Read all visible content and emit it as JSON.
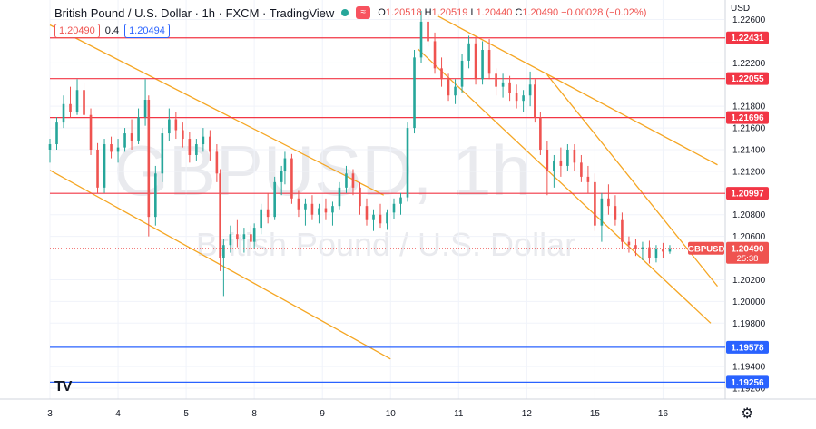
{
  "header": {
    "title": "British Pound / U.S. Dollar · 1h · FXCM · TradingView",
    "ohlc": {
      "o_label": "O",
      "o": "1.20518",
      "h_label": "H",
      "h": "1.20519",
      "l_label": "L",
      "l": "1.20440",
      "c_label": "C",
      "c": "1.20490",
      "change": "−0.00028 (−0.02%)"
    },
    "bid": "1.20490",
    "spread": "0.4",
    "ask": "1.20494",
    "wave_icon": "≈"
  },
  "axis": {
    "currency": "USD",
    "current_tag": "GBPUSD",
    "current_price": "1.20490",
    "countdown": "25:38"
  },
  "watermark": {
    "symbol": "GBPUSD, 1h",
    "name": "British Pound / U.S. Dollar"
  },
  "colors": {
    "up": "#26a69a",
    "down": "#ef5350",
    "resistance": "#f23645",
    "support": "#2962ff",
    "channel": "#f5a623"
  },
  "chart_data": {
    "type": "candlestick",
    "symbol": "GBPUSD",
    "timeframe": "1h",
    "y_ticks": [
      1.226,
      1.222,
      1.218,
      1.216,
      1.214,
      1.212,
      1.208,
      1.206,
      1.202,
      1.2,
      1.198,
      1.194,
      1.192
    ],
    "x_ticks": [
      {
        "label": "3",
        "day": 3
      },
      {
        "label": "4",
        "day": 4
      },
      {
        "label": "5",
        "day": 5
      },
      {
        "label": "8",
        "day": 8
      },
      {
        "label": "9",
        "day": 9
      },
      {
        "label": "10",
        "day": 10
      },
      {
        "label": "11",
        "day": 11
      },
      {
        "label": "12",
        "day": 12
      },
      {
        "label": "15",
        "day": 15
      },
      {
        "label": "16",
        "day": 16
      }
    ],
    "horizontal_levels": [
      {
        "price": 1.22431,
        "label": "1.22431",
        "kind": "resistance"
      },
      {
        "price": 1.22055,
        "label": "1.22055",
        "kind": "resistance"
      },
      {
        "price": 1.21696,
        "label": "1.21696",
        "kind": "resistance"
      },
      {
        "price": 1.20997,
        "label": "1.20997",
        "kind": "resistance"
      },
      {
        "price": 1.19578,
        "label": "1.19578",
        "kind": "support"
      },
      {
        "price": 1.19256,
        "label": "1.19256",
        "kind": "support"
      }
    ],
    "channel_lines": [
      {
        "from": {
          "t": 3.0,
          "p": 1.2255
        },
        "to": {
          "t": 9.9,
          "p": 1.2098
        }
      },
      {
        "from": {
          "t": 3.0,
          "p": 1.2121
        },
        "to": {
          "t": 10.0,
          "p": 1.1947
        }
      },
      {
        "from": {
          "t": 10.7,
          "p": 1.2263
        },
        "to": {
          "t": 16.8,
          "p": 1.2126
        }
      },
      {
        "from": {
          "t": 10.4,
          "p": 1.2233
        },
        "to": {
          "t": 16.7,
          "p": 1.198
        }
      },
      {
        "from": {
          "t": 12.3,
          "p": 1.2209
        },
        "to": {
          "t": 16.8,
          "p": 1.2014
        }
      }
    ],
    "last_price": 1.2049,
    "candles": [
      {
        "t": 3.0,
        "o": 1.214,
        "h": 1.215,
        "l": 1.2128,
        "c": 1.2145
      },
      {
        "t": 3.1,
        "o": 1.2145,
        "h": 1.217,
        "l": 1.214,
        "c": 1.2165
      },
      {
        "t": 3.2,
        "o": 1.2165,
        "h": 1.219,
        "l": 1.216,
        "c": 1.2182
      },
      {
        "t": 3.3,
        "o": 1.2182,
        "h": 1.2198,
        "l": 1.217,
        "c": 1.2175
      },
      {
        "t": 3.4,
        "o": 1.2175,
        "h": 1.2205,
        "l": 1.2172,
        "c": 1.2195
      },
      {
        "t": 3.5,
        "o": 1.2195,
        "h": 1.2202,
        "l": 1.2168,
        "c": 1.2172
      },
      {
        "t": 3.6,
        "o": 1.2172,
        "h": 1.2178,
        "l": 1.2135,
        "c": 1.214
      },
      {
        "t": 3.7,
        "o": 1.214,
        "h": 1.2146,
        "l": 1.21,
        "c": 1.2105
      },
      {
        "t": 3.8,
        "o": 1.2105,
        "h": 1.215,
        "l": 1.21,
        "c": 1.2145
      },
      {
        "t": 3.9,
        "o": 1.2145,
        "h": 1.2152,
        "l": 1.2132,
        "c": 1.2138
      },
      {
        "t": 4.0,
        "o": 1.2138,
        "h": 1.215,
        "l": 1.2128,
        "c": 1.2142
      },
      {
        "t": 4.1,
        "o": 1.2142,
        "h": 1.216,
        "l": 1.2138,
        "c": 1.2155
      },
      {
        "t": 4.2,
        "o": 1.2155,
        "h": 1.2168,
        "l": 1.214,
        "c": 1.2148
      },
      {
        "t": 4.3,
        "o": 1.2148,
        "h": 1.2178,
        "l": 1.2145,
        "c": 1.217
      },
      {
        "t": 4.4,
        "o": 1.217,
        "h": 1.2205,
        "l": 1.2162,
        "c": 1.2186
      },
      {
        "t": 4.45,
        "o": 1.2186,
        "h": 1.219,
        "l": 1.206,
        "c": 1.2078
      },
      {
        "t": 4.55,
        "o": 1.2078,
        "h": 1.2125,
        "l": 1.207,
        "c": 1.2118
      },
      {
        "t": 4.65,
        "o": 1.2118,
        "h": 1.216,
        "l": 1.211,
        "c": 1.2155
      },
      {
        "t": 4.75,
        "o": 1.2155,
        "h": 1.2178,
        "l": 1.2148,
        "c": 1.2168
      },
      {
        "t": 4.85,
        "o": 1.2168,
        "h": 1.2175,
        "l": 1.215,
        "c": 1.2158
      },
      {
        "t": 4.95,
        "o": 1.2158,
        "h": 1.2165,
        "l": 1.2142,
        "c": 1.215
      },
      {
        "t": 5.05,
        "o": 1.215,
        "h": 1.2156,
        "l": 1.2128,
        "c": 1.2135
      },
      {
        "t": 5.15,
        "o": 1.2135,
        "h": 1.215,
        "l": 1.213,
        "c": 1.2145
      },
      {
        "t": 5.25,
        "o": 1.2145,
        "h": 1.216,
        "l": 1.2138,
        "c": 1.2152
      },
      {
        "t": 5.35,
        "o": 1.2152,
        "h": 1.2158,
        "l": 1.213,
        "c": 1.2138
      },
      {
        "t": 5.45,
        "o": 1.2138,
        "h": 1.2145,
        "l": 1.211,
        "c": 1.2118
      },
      {
        "t": 5.5,
        "o": 1.2118,
        "h": 1.2122,
        "l": 1.2028,
        "c": 1.204
      },
      {
        "t": 5.55,
        "o": 1.204,
        "h": 1.2058,
        "l": 1.2005,
        "c": 1.2052
      },
      {
        "t": 5.65,
        "o": 1.2052,
        "h": 1.207,
        "l": 1.2045,
        "c": 1.2062
      },
      {
        "t": 5.75,
        "o": 1.2062,
        "h": 1.2075,
        "l": 1.205,
        "c": 1.2058
      },
      {
        "t": 5.85,
        "o": 1.2058,
        "h": 1.2068,
        "l": 1.2045,
        "c": 1.2062
      },
      {
        "t": 5.95,
        "o": 1.2062,
        "h": 1.207,
        "l": 1.2048,
        "c": 1.2055
      },
      {
        "t": 8.0,
        "o": 1.2055,
        "h": 1.2072,
        "l": 1.2048,
        "c": 1.2068
      },
      {
        "t": 8.1,
        "o": 1.2068,
        "h": 1.209,
        "l": 1.2062,
        "c": 1.2085
      },
      {
        "t": 8.2,
        "o": 1.2085,
        "h": 1.21,
        "l": 1.2072,
        "c": 1.2078
      },
      {
        "t": 8.3,
        "o": 1.2078,
        "h": 1.2115,
        "l": 1.2075,
        "c": 1.211
      },
      {
        "t": 8.4,
        "o": 1.211,
        "h": 1.2125,
        "l": 1.2098,
        "c": 1.212
      },
      {
        "t": 8.45,
        "o": 1.212,
        "h": 1.2138,
        "l": 1.2108,
        "c": 1.2132
      },
      {
        "t": 8.55,
        "o": 1.2132,
        "h": 1.2136,
        "l": 1.209,
        "c": 1.2095
      },
      {
        "t": 8.65,
        "o": 1.2095,
        "h": 1.2102,
        "l": 1.2078,
        "c": 1.2085
      },
      {
        "t": 8.75,
        "o": 1.2085,
        "h": 1.2095,
        "l": 1.207,
        "c": 1.209
      },
      {
        "t": 8.85,
        "o": 1.209,
        "h": 1.2098,
        "l": 1.2075,
        "c": 1.208
      },
      {
        "t": 8.95,
        "o": 1.208,
        "h": 1.209,
        "l": 1.2072,
        "c": 1.2086
      },
      {
        "t": 9.05,
        "o": 1.2086,
        "h": 1.2095,
        "l": 1.2075,
        "c": 1.2082
      },
      {
        "t": 9.15,
        "o": 1.2082,
        "h": 1.2092,
        "l": 1.207,
        "c": 1.2088
      },
      {
        "t": 9.25,
        "o": 1.2088,
        "h": 1.211,
        "l": 1.2085,
        "c": 1.2105
      },
      {
        "t": 9.35,
        "o": 1.2105,
        "h": 1.2125,
        "l": 1.21,
        "c": 1.2118
      },
      {
        "t": 9.45,
        "o": 1.2118,
        "h": 1.2122,
        "l": 1.2098,
        "c": 1.2105
      },
      {
        "t": 9.55,
        "o": 1.2105,
        "h": 1.211,
        "l": 1.208,
        "c": 1.2088
      },
      {
        "t": 9.65,
        "o": 1.2088,
        "h": 1.2095,
        "l": 1.207,
        "c": 1.2075
      },
      {
        "t": 9.75,
        "o": 1.2075,
        "h": 1.2085,
        "l": 1.2065,
        "c": 1.208
      },
      {
        "t": 9.85,
        "o": 1.208,
        "h": 1.209,
        "l": 1.2068,
        "c": 1.2072
      },
      {
        "t": 9.95,
        "o": 1.2072,
        "h": 1.2085,
        "l": 1.2066,
        "c": 1.2082
      },
      {
        "t": 10.05,
        "o": 1.2082,
        "h": 1.2095,
        "l": 1.2076,
        "c": 1.209
      },
      {
        "t": 10.15,
        "o": 1.209,
        "h": 1.21,
        "l": 1.208,
        "c": 1.2096
      },
      {
        "t": 10.25,
        "o": 1.2096,
        "h": 1.2165,
        "l": 1.2092,
        "c": 1.216
      },
      {
        "t": 10.35,
        "o": 1.216,
        "h": 1.2232,
        "l": 1.2155,
        "c": 1.2225
      },
      {
        "t": 10.45,
        "o": 1.2225,
        "h": 1.2268,
        "l": 1.222,
        "c": 1.2258
      },
      {
        "t": 10.55,
        "o": 1.2258,
        "h": 1.2266,
        "l": 1.2235,
        "c": 1.224
      },
      {
        "t": 10.65,
        "o": 1.224,
        "h": 1.2248,
        "l": 1.221,
        "c": 1.2215
      },
      {
        "t": 10.75,
        "o": 1.2215,
        "h": 1.2225,
        "l": 1.2198,
        "c": 1.2205
      },
      {
        "t": 10.85,
        "o": 1.2205,
        "h": 1.221,
        "l": 1.2185,
        "c": 1.219
      },
      {
        "t": 10.95,
        "o": 1.219,
        "h": 1.2205,
        "l": 1.2182,
        "c": 1.2198
      },
      {
        "t": 11.05,
        "o": 1.2198,
        "h": 1.2228,
        "l": 1.2192,
        "c": 1.2222
      },
      {
        "t": 11.15,
        "o": 1.2222,
        "h": 1.2245,
        "l": 1.2215,
        "c": 1.2238
      },
      {
        "t": 11.25,
        "o": 1.2238,
        "h": 1.2244,
        "l": 1.22,
        "c": 1.2205
      },
      {
        "t": 11.35,
        "o": 1.2205,
        "h": 1.224,
        "l": 1.22,
        "c": 1.2232
      },
      {
        "t": 11.45,
        "o": 1.2232,
        "h": 1.2242,
        "l": 1.2205,
        "c": 1.221
      },
      {
        "t": 11.55,
        "o": 1.221,
        "h": 1.2215,
        "l": 1.219,
        "c": 1.2198
      },
      {
        "t": 11.65,
        "o": 1.2198,
        "h": 1.221,
        "l": 1.2188,
        "c": 1.2202
      },
      {
        "t": 11.75,
        "o": 1.2202,
        "h": 1.2208,
        "l": 1.2185,
        "c": 1.2192
      },
      {
        "t": 11.85,
        "o": 1.2192,
        "h": 1.22,
        "l": 1.2178,
        "c": 1.2185
      },
      {
        "t": 11.95,
        "o": 1.2185,
        "h": 1.2195,
        "l": 1.2175,
        "c": 1.219
      },
      {
        "t": 12.05,
        "o": 1.219,
        "h": 1.2212,
        "l": 1.218,
        "c": 1.22
      },
      {
        "t": 12.12,
        "o": 1.22,
        "h": 1.2205,
        "l": 1.2165,
        "c": 1.217
      },
      {
        "t": 12.2,
        "o": 1.217,
        "h": 1.2175,
        "l": 1.2135,
        "c": 1.214
      },
      {
        "t": 12.3,
        "o": 1.214,
        "h": 1.2148,
        "l": 1.2098,
        "c": 1.212
      },
      {
        "t": 12.4,
        "o": 1.212,
        "h": 1.2135,
        "l": 1.2105,
        "c": 1.213
      },
      {
        "t": 12.5,
        "o": 1.213,
        "h": 1.2142,
        "l": 1.2115,
        "c": 1.2125
      },
      {
        "t": 12.6,
        "o": 1.2125,
        "h": 1.2145,
        "l": 1.212,
        "c": 1.214
      },
      {
        "t": 12.7,
        "o": 1.214,
        "h": 1.2145,
        "l": 1.212,
        "c": 1.2128
      },
      {
        "t": 12.8,
        "o": 1.2128,
        "h": 1.2135,
        "l": 1.211,
        "c": 1.2115
      },
      {
        "t": 12.9,
        "o": 1.2115,
        "h": 1.2125,
        "l": 1.21,
        "c": 1.211
      },
      {
        "t": 15.0,
        "o": 1.211,
        "h": 1.2118,
        "l": 1.2065,
        "c": 1.207
      },
      {
        "t": 15.1,
        "o": 1.207,
        "h": 1.21,
        "l": 1.2055,
        "c": 1.2095
      },
      {
        "t": 15.2,
        "o": 1.2095,
        "h": 1.2108,
        "l": 1.208,
        "c": 1.2088
      },
      {
        "t": 15.3,
        "o": 1.2088,
        "h": 1.2098,
        "l": 1.207,
        "c": 1.2075
      },
      {
        "t": 15.4,
        "o": 1.2075,
        "h": 1.2082,
        "l": 1.2048,
        "c": 1.2055
      },
      {
        "t": 15.5,
        "o": 1.2055,
        "h": 1.206,
        "l": 1.2045,
        "c": 1.2052
      },
      {
        "t": 15.6,
        "o": 1.2052,
        "h": 1.2058,
        "l": 1.2042,
        "c": 1.2048
      },
      {
        "t": 15.7,
        "o": 1.2048,
        "h": 1.2055,
        "l": 1.2038,
        "c": 1.205
      },
      {
        "t": 15.8,
        "o": 1.205,
        "h": 1.2056,
        "l": 1.2035,
        "c": 1.204
      },
      {
        "t": 15.9,
        "o": 1.204,
        "h": 1.2052,
        "l": 1.2036,
        "c": 1.2048
      },
      {
        "t": 16.0,
        "o": 1.2048,
        "h": 1.2054,
        "l": 1.204,
        "c": 1.2046
      },
      {
        "t": 16.1,
        "o": 1.2046,
        "h": 1.2052,
        "l": 1.2044,
        "c": 1.2049
      }
    ]
  }
}
